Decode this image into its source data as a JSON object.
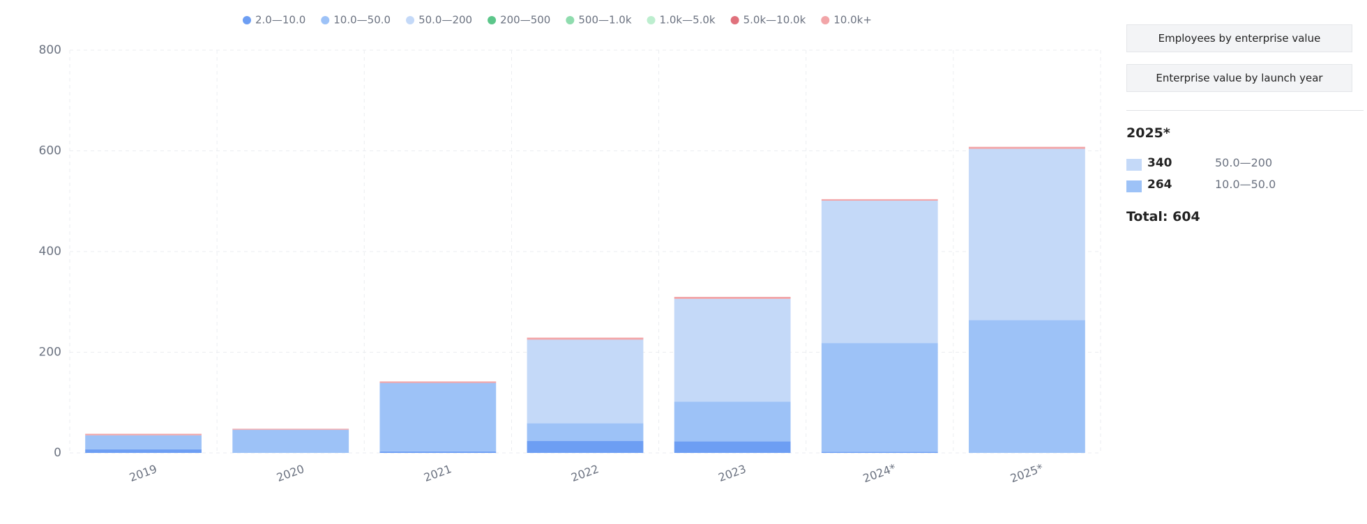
{
  "chart_data": {
    "type": "stacked-bar",
    "categories": [
      "2019",
      "2020",
      "2021",
      "2022",
      "2023",
      "2024*",
      "2025*"
    ],
    "series": [
      {
        "name": "2.0—10.0",
        "color": "#6d9ef3",
        "values": [
          7,
          0,
          3,
          24,
          23,
          2,
          0
        ]
      },
      {
        "name": "10.0—50.0",
        "color": "#9dc2f7",
        "values": [
          28,
          46,
          136,
          35,
          79,
          216,
          264
        ]
      },
      {
        "name": "50.0—200",
        "color": "#c4d9f8",
        "values": [
          0,
          0,
          0,
          166,
          204,
          283,
          340
        ]
      },
      {
        "name": "200—500",
        "color": "#5cc68a",
        "values": [
          0,
          0,
          0,
          0,
          0,
          0,
          0
        ]
      },
      {
        "name": "500—1.0k",
        "color": "#8fdcae",
        "values": [
          0,
          0,
          0,
          0,
          0,
          0,
          0
        ]
      },
      {
        "name": "1.0k—5.0k",
        "color": "#bdeecf",
        "values": [
          0,
          0,
          0,
          0,
          0,
          0,
          0
        ]
      },
      {
        "name": "5.0k—10.0k",
        "color": "#e0717c",
        "values": [
          0,
          0,
          0,
          0,
          0,
          0,
          0
        ]
      },
      {
        "name": "10.0k+",
        "color": "#f2a5a8",
        "values": [
          3,
          2,
          3,
          4,
          4,
          3,
          4
        ]
      }
    ],
    "ylim": [
      0,
      800
    ],
    "yticks": [
      0,
      200,
      400,
      600,
      800
    ],
    "grid": true
  },
  "buttons": [
    "Employees by enterprise value",
    "Enterprise value by launch year"
  ],
  "panel": {
    "title": "2025*",
    "items": [
      {
        "value": 340,
        "name": "50.0—200"
      },
      {
        "value": 264,
        "name": "10.0—50.0"
      }
    ],
    "total": "Total: 604"
  }
}
